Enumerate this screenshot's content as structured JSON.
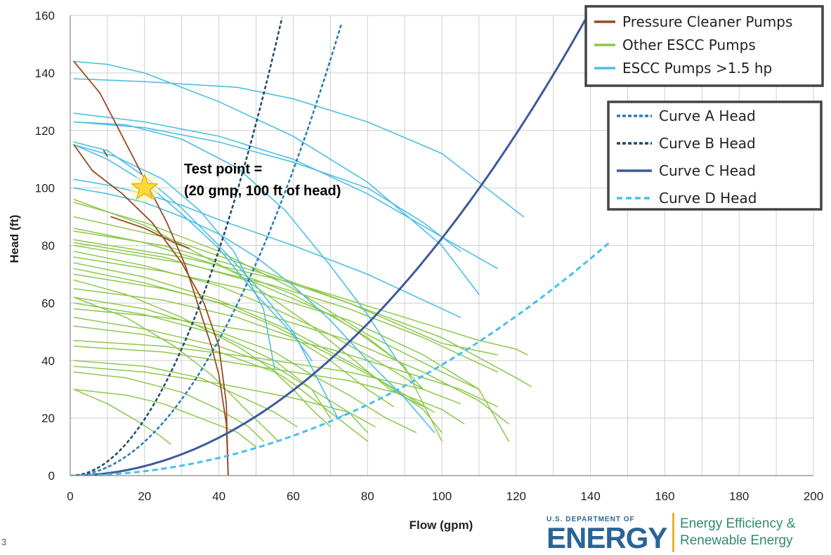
{
  "chart_data": {
    "type": "line",
    "xlabel": "Flow (gpm)",
    "ylabel": "Head (ft)",
    "xlim": [
      0,
      200
    ],
    "ylim": [
      0,
      160
    ],
    "x_ticks": [
      "0",
      "20",
      "40",
      "60",
      "80",
      "100",
      "120",
      "140",
      "160",
      "180",
      "200"
    ],
    "y_ticks": [
      "0",
      "20",
      "40",
      "60",
      "80",
      "100",
      "120",
      "140",
      "160"
    ],
    "grid": true,
    "colors": {
      "pressure": "#9a4a22",
      "other": "#8cc84b",
      "escc": "#4cbfe6",
      "curve_a": "#2a7ab8",
      "curve_b": "#1c4a6a",
      "curve_c": "#3d5a9a",
      "curve_d": "#45c0ee"
    },
    "legend_pumps": [
      {
        "label": "Pressure Cleaner Pumps",
        "color": "#9a4a22",
        "dash": ""
      },
      {
        "label": "Other ESCC Pumps",
        "color": "#8cc84b",
        "dash": ""
      },
      {
        "label": "ESCC Pumps >1.5 hp",
        "color": "#4cbfe6",
        "dash": ""
      }
    ],
    "legend_curves": [
      {
        "label": "Curve A Head",
        "color": "#2a7ab8",
        "dash": "5,3"
      },
      {
        "label": "Curve B Head",
        "color": "#1c4a6a",
        "dash": "5,3"
      },
      {
        "label": "Curve C Head",
        "color": "#3d5a9a",
        "dash": ""
      },
      {
        "label": "Curve D Head",
        "color": "#45c0ee",
        "dash": "8,5"
      }
    ],
    "system_curves": [
      {
        "name": "Curve A Head",
        "color": "#2a7ab8",
        "dash": "5,3",
        "width": 2.5,
        "k": 0.0295,
        "x_max": 73.6
      },
      {
        "name": "Curve B Head",
        "color": "#1c4a6a",
        "dash": "5,3",
        "width": 2.5,
        "k": 0.049,
        "x_max": 57.1
      },
      {
        "name": "Curve C Head",
        "color": "#3d5a9a",
        "dash": "",
        "width": 3,
        "k": 0.00825,
        "x_max": 140
      },
      {
        "name": "Curve D Head",
        "color": "#45c0ee",
        "dash": "8,5",
        "width": 3,
        "k": 0.00385,
        "x_max": 145
      }
    ],
    "pressure_pumps": [
      [
        [
          1,
          144
        ],
        [
          8,
          133
        ],
        [
          14,
          118
        ],
        [
          20,
          103
        ],
        [
          26,
          88
        ],
        [
          31,
          73
        ],
        [
          35,
          57
        ],
        [
          38,
          45
        ],
        [
          40,
          35
        ],
        [
          42,
          18
        ],
        [
          42.5,
          0
        ]
      ],
      [
        [
          1,
          115
        ],
        [
          6,
          106
        ],
        [
          14,
          98
        ],
        [
          22,
          88
        ],
        [
          30,
          74
        ],
        [
          36,
          60
        ],
        [
          40,
          45
        ],
        [
          42,
          25
        ],
        [
          42.5,
          0
        ]
      ],
      [
        [
          11,
          90
        ],
        [
          20,
          86
        ],
        [
          28,
          81
        ],
        [
          32,
          79
        ]
      ],
      [
        [
          9,
          113
        ],
        [
          10,
          111
        ]
      ]
    ],
    "escc_pumps": [
      [
        [
          1,
          144
        ],
        [
          10,
          143
        ],
        [
          20,
          140
        ],
        [
          40,
          130
        ],
        [
          60,
          118
        ],
        [
          80,
          102
        ],
        [
          100,
          80
        ],
        [
          110,
          63
        ]
      ],
      [
        [
          1,
          138
        ],
        [
          20,
          137
        ],
        [
          45,
          135
        ],
        [
          60,
          131
        ],
        [
          80,
          123
        ],
        [
          100,
          112
        ],
        [
          122,
          90
        ]
      ],
      [
        [
          1,
          126
        ],
        [
          20,
          123
        ],
        [
          40,
          118
        ],
        [
          60,
          110
        ],
        [
          80,
          98
        ],
        [
          100,
          83
        ],
        [
          115,
          72
        ]
      ],
      [
        [
          1,
          123
        ],
        [
          20,
          121
        ],
        [
          40,
          116
        ],
        [
          60,
          109
        ],
        [
          80,
          100
        ],
        [
          95,
          88
        ],
        [
          105,
          78
        ]
      ],
      [
        [
          1,
          123
        ],
        [
          15,
          122
        ],
        [
          30,
          117
        ],
        [
          45,
          107
        ],
        [
          58,
          92
        ],
        [
          70,
          73
        ],
        [
          80,
          56
        ],
        [
          88,
          40
        ]
      ],
      [
        [
          1,
          116
        ],
        [
          10,
          113
        ],
        [
          20,
          104
        ],
        [
          30,
          93
        ],
        [
          40,
          80
        ],
        [
          50,
          66
        ],
        [
          60,
          50
        ],
        [
          72,
          20
        ],
        [
          75,
          22
        ]
      ],
      [
        [
          1,
          103
        ],
        [
          10,
          101
        ],
        [
          20,
          98
        ],
        [
          30,
          94
        ],
        [
          40,
          89
        ],
        [
          60,
          80
        ],
        [
          80,
          70
        ],
        [
          105,
          55
        ]
      ],
      [
        [
          1,
          115
        ],
        [
          10,
          110
        ],
        [
          20,
          102
        ],
        [
          30,
          91
        ],
        [
          40,
          79
        ],
        [
          50,
          63
        ],
        [
          60,
          49
        ],
        [
          65,
          40
        ]
      ],
      [
        [
          1,
          100
        ],
        [
          10,
          98
        ],
        [
          20,
          95
        ],
        [
          30,
          90
        ],
        [
          40,
          84
        ],
        [
          50,
          76
        ],
        [
          60,
          66
        ],
        [
          70,
          54
        ],
        [
          80,
          40
        ],
        [
          90,
          27
        ],
        [
          98,
          15
        ]
      ],
      [
        [
          1,
          115
        ],
        [
          12,
          111
        ],
        [
          25,
          103
        ],
        [
          35,
          92
        ],
        [
          44,
          78
        ],
        [
          52,
          58
        ],
        [
          55,
          37
        ]
      ]
    ],
    "other_pumps": [
      [
        [
          1,
          96
        ],
        [
          20,
          87
        ],
        [
          45,
          70
        ],
        [
          65,
          52
        ],
        [
          86,
          30
        ],
        [
          95,
          24
        ]
      ],
      [
        [
          1,
          95
        ],
        [
          20,
          88
        ],
        [
          40,
          78
        ],
        [
          60,
          65
        ],
        [
          80,
          49
        ],
        [
          100,
          36
        ],
        [
          110,
          30
        ]
      ],
      [
        [
          1,
          90
        ],
        [
          25,
          83
        ],
        [
          50,
          72
        ],
        [
          75,
          60
        ],
        [
          100,
          46
        ],
        [
          115,
          42
        ]
      ],
      [
        [
          1,
          85
        ],
        [
          25,
          80
        ],
        [
          50,
          71
        ],
        [
          75,
          60
        ],
        [
          100,
          48
        ],
        [
          120,
          34
        ],
        [
          124,
          31
        ]
      ],
      [
        [
          1,
          82
        ],
        [
          30,
          76
        ],
        [
          60,
          67
        ],
        [
          90,
          55
        ],
        [
          110,
          47
        ],
        [
          120,
          44
        ],
        [
          123,
          42
        ]
      ],
      [
        [
          1,
          80
        ],
        [
          30,
          74
        ],
        [
          55,
          66
        ],
        [
          75,
          58
        ],
        [
          95,
          48
        ],
        [
          110,
          39
        ],
        [
          115,
          36
        ]
      ],
      [
        [
          1,
          78
        ],
        [
          20,
          73
        ],
        [
          40,
          66
        ],
        [
          55,
          58
        ],
        [
          70,
          49
        ],
        [
          85,
          38
        ],
        [
          95,
          30
        ]
      ],
      [
        [
          1,
          72
        ],
        [
          20,
          67
        ],
        [
          40,
          60
        ],
        [
          55,
          52
        ],
        [
          70,
          42
        ],
        [
          85,
          32
        ],
        [
          98,
          22
        ]
      ],
      [
        [
          1,
          70
        ],
        [
          25,
          65
        ],
        [
          50,
          57
        ],
        [
          75,
          47
        ],
        [
          95,
          36
        ],
        [
          110,
          26
        ],
        [
          118,
          18
        ]
      ],
      [
        [
          1,
          65
        ],
        [
          25,
          61
        ],
        [
          45,
          55
        ],
        [
          60,
          48
        ],
        [
          70,
          40
        ],
        [
          80,
          30
        ],
        [
          87,
          24
        ]
      ],
      [
        [
          1,
          62
        ],
        [
          20,
          58
        ],
        [
          40,
          50
        ],
        [
          55,
          43
        ],
        [
          65,
          35
        ],
        [
          75,
          28
        ],
        [
          85,
          20
        ],
        [
          93,
          15
        ]
      ],
      [
        [
          1,
          58
        ],
        [
          25,
          55
        ],
        [
          50,
          50
        ],
        [
          70,
          44
        ],
        [
          90,
          36
        ],
        [
          105,
          30
        ],
        [
          115,
          24
        ]
      ],
      [
        [
          1,
          55
        ],
        [
          20,
          51
        ],
        [
          40,
          45
        ],
        [
          55,
          38
        ],
        [
          65,
          30
        ],
        [
          75,
          22
        ],
        [
          80,
          15
        ]
      ],
      [
        [
          1,
          52
        ],
        [
          20,
          49
        ],
        [
          40,
          43
        ],
        [
          55,
          36
        ],
        [
          60,
          30
        ],
        [
          65,
          23
        ],
        [
          70,
          17
        ]
      ],
      [
        [
          1,
          47
        ],
        [
          25,
          45
        ],
        [
          50,
          41
        ],
        [
          75,
          36
        ],
        [
          95,
          30
        ],
        [
          105,
          25
        ]
      ],
      [
        [
          1,
          45
        ],
        [
          25,
          43
        ],
        [
          50,
          38
        ],
        [
          75,
          33
        ],
        [
          90,
          28
        ],
        [
          100,
          23
        ],
        [
          106,
          18
        ]
      ],
      [
        [
          1,
          40
        ],
        [
          20,
          38
        ],
        [
          35,
          34
        ],
        [
          45,
          28
        ],
        [
          55,
          22
        ],
        [
          61,
          17
        ]
      ],
      [
        [
          1,
          38
        ],
        [
          20,
          36
        ],
        [
          40,
          32
        ],
        [
          60,
          27
        ],
        [
          75,
          22
        ],
        [
          82,
          17
        ]
      ],
      [
        [
          1,
          36
        ],
        [
          15,
          34
        ],
        [
          30,
          29
        ],
        [
          40,
          23
        ],
        [
          48,
          17
        ],
        [
          52,
          12
        ]
      ],
      [
        [
          1,
          30
        ],
        [
          15,
          28
        ],
        [
          25,
          25
        ],
        [
          35,
          20
        ],
        [
          45,
          15
        ],
        [
          50,
          10
        ]
      ],
      [
        [
          1,
          30
        ],
        [
          10,
          25
        ],
        [
          18,
          19
        ],
        [
          24,
          14
        ],
        [
          27,
          11
        ]
      ],
      [
        [
          1,
          62
        ],
        [
          15,
          55
        ],
        [
          28,
          45
        ],
        [
          38,
          35
        ],
        [
          48,
          22
        ],
        [
          56,
          12
        ]
      ],
      [
        [
          1,
          68
        ],
        [
          15,
          63
        ],
        [
          30,
          55
        ],
        [
          45,
          45
        ],
        [
          60,
          32
        ],
        [
          72,
          20
        ],
        [
          80,
          12
        ]
      ],
      [
        [
          1,
          74
        ],
        [
          20,
          69
        ],
        [
          40,
          61
        ],
        [
          60,
          50
        ],
        [
          80,
          36
        ],
        [
          95,
          23
        ],
        [
          100,
          15
        ]
      ],
      [
        [
          1,
          76
        ],
        [
          25,
          71
        ],
        [
          50,
          64
        ],
        [
          75,
          54
        ],
        [
          95,
          42
        ],
        [
          110,
          30
        ],
        [
          118,
          12
        ]
      ],
      [
        [
          1,
          81
        ],
        [
          25,
          76
        ],
        [
          50,
          67
        ],
        [
          70,
          56
        ],
        [
          80,
          48
        ],
        [
          90,
          38
        ],
        [
          100,
          12
        ]
      ],
      [
        [
          1,
          60
        ],
        [
          20,
          56
        ],
        [
          40,
          49
        ],
        [
          55,
          40
        ],
        [
          65,
          30
        ],
        [
          70,
          20
        ]
      ],
      [
        [
          1,
          86
        ],
        [
          20,
          81
        ],
        [
          40,
          73
        ],
        [
          60,
          63
        ],
        [
          75,
          52
        ],
        [
          88,
          40
        ],
        [
          95,
          30
        ]
      ]
    ],
    "test_point": {
      "x": 20,
      "y": 100
    },
    "annotation_line1": "Test point =",
    "annotation_line2": "(20 gmp, 100 ft of head)"
  },
  "footer": {
    "slide_number": "3",
    "doe_small": "U.S. DEPARTMENT OF",
    "doe_big": "ENERGY",
    "eere_line1": "Energy Efficiency &",
    "eere_line2": "Renewable Energy"
  }
}
